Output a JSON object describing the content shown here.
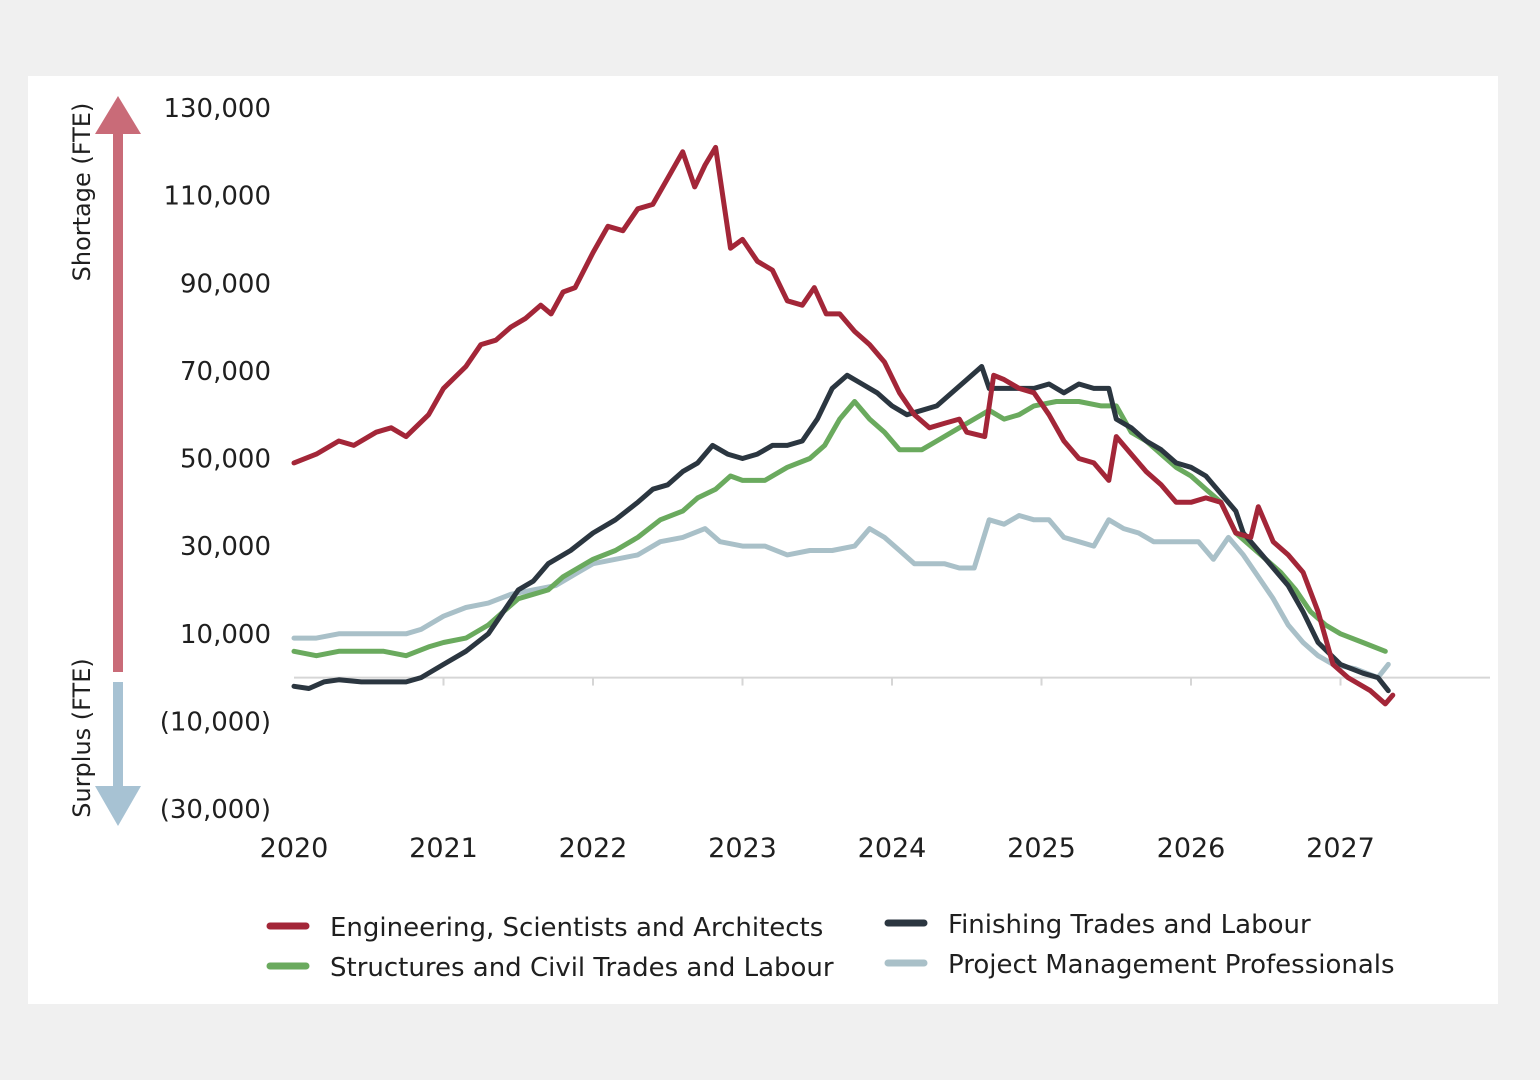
{
  "chart_data": {
    "type": "line",
    "title": "",
    "xlabel": "",
    "ylabel_top": "Shortage (FTE)",
    "ylabel_bottom": "Surplus (FTE)",
    "ylim": [
      -30000,
      130000
    ],
    "xlim": [
      2020,
      2028
    ],
    "y_ticks": [
      {
        "value": 130000,
        "label": "130,000"
      },
      {
        "value": 110000,
        "label": "110,000"
      },
      {
        "value": 90000,
        "label": "90,000"
      },
      {
        "value": 70000,
        "label": "70,000"
      },
      {
        "value": 50000,
        "label": "50,000"
      },
      {
        "value": 30000,
        "label": "30,000"
      },
      {
        "value": 10000,
        "label": "10,000"
      },
      {
        "value": -10000,
        "label": "(10,000)"
      },
      {
        "value": -30000,
        "label": "(30,000)"
      }
    ],
    "x_ticks": [
      {
        "value": 2020,
        "label": "2020"
      },
      {
        "value": 2021,
        "label": "2021"
      },
      {
        "value": 2022,
        "label": "2022"
      },
      {
        "value": 2023,
        "label": "2023"
      },
      {
        "value": 2024,
        "label": "2024"
      },
      {
        "value": 2025,
        "label": "2025"
      },
      {
        "value": 2026,
        "label": "2026"
      },
      {
        "value": 2027,
        "label": "2027"
      }
    ],
    "legend_position": "bottom",
    "series": [
      {
        "name": "Engineering, Scientists and Architects",
        "color": "#a32638",
        "points": [
          [
            2020,
            49000
          ],
          [
            2020.15,
            51000
          ],
          [
            2020.3,
            54000
          ],
          [
            2020.4,
            53000
          ],
          [
            2020.55,
            56000
          ],
          [
            2020.65,
            57000
          ],
          [
            2020.75,
            55000
          ],
          [
            2020.9,
            60000
          ],
          [
            2021.0,
            66000
          ],
          [
            2021.15,
            71000
          ],
          [
            2021.25,
            76000
          ],
          [
            2021.35,
            77000
          ],
          [
            2021.45,
            80000
          ],
          [
            2021.55,
            82000
          ],
          [
            2021.65,
            85000
          ],
          [
            2021.72,
            83000
          ],
          [
            2021.8,
            88000
          ],
          [
            2021.88,
            89000
          ],
          [
            2022.0,
            97000
          ],
          [
            2022.1,
            103000
          ],
          [
            2022.2,
            102000
          ],
          [
            2022.3,
            107000
          ],
          [
            2022.4,
            108000
          ],
          [
            2022.5,
            114000
          ],
          [
            2022.6,
            120000
          ],
          [
            2022.68,
            112000
          ],
          [
            2022.75,
            117000
          ],
          [
            2022.82,
            121000
          ],
          [
            2022.92,
            98000
          ],
          [
            2023.0,
            100000
          ],
          [
            2023.1,
            95000
          ],
          [
            2023.2,
            93000
          ],
          [
            2023.3,
            86000
          ],
          [
            2023.4,
            85000
          ],
          [
            2023.48,
            89000
          ],
          [
            2023.56,
            83000
          ],
          [
            2023.65,
            83000
          ],
          [
            2023.75,
            79000
          ],
          [
            2023.85,
            76000
          ],
          [
            2023.95,
            72000
          ],
          [
            2024.05,
            65000
          ],
          [
            2024.15,
            60000
          ],
          [
            2024.25,
            57000
          ],
          [
            2024.35,
            58000
          ],
          [
            2024.45,
            59000
          ],
          [
            2024.5,
            56000
          ],
          [
            2024.62,
            55000
          ],
          [
            2024.68,
            69000
          ],
          [
            2024.75,
            68000
          ],
          [
            2024.85,
            66000
          ],
          [
            2024.95,
            65000
          ],
          [
            2025.05,
            60000
          ],
          [
            2025.15,
            54000
          ],
          [
            2025.25,
            50000
          ],
          [
            2025.35,
            49000
          ],
          [
            2025.45,
            45000
          ],
          [
            2025.5,
            55000
          ],
          [
            2025.6,
            51000
          ],
          [
            2025.7,
            47000
          ],
          [
            2025.8,
            44000
          ],
          [
            2025.9,
            40000
          ],
          [
            2026.0,
            40000
          ],
          [
            2026.1,
            41000
          ],
          [
            2026.2,
            40000
          ],
          [
            2026.3,
            33000
          ],
          [
            2026.4,
            32000
          ],
          [
            2026.45,
            39000
          ],
          [
            2026.55,
            31000
          ],
          [
            2026.65,
            28000
          ],
          [
            2026.75,
            24000
          ],
          [
            2026.85,
            15000
          ],
          [
            2026.95,
            3000
          ],
          [
            2027.05,
            0
          ],
          [
            2027.2,
            -3000
          ],
          [
            2027.3,
            -6000
          ],
          [
            2027.35,
            -4000
          ]
        ]
      },
      {
        "name": "Structures and Civil Trades and Labour",
        "color": "#6aaa5e",
        "points": [
          [
            2020,
            6000
          ],
          [
            2020.15,
            5000
          ],
          [
            2020.3,
            6000
          ],
          [
            2020.45,
            6000
          ],
          [
            2020.6,
            6000
          ],
          [
            2020.75,
            5000
          ],
          [
            2020.9,
            7000
          ],
          [
            2021.0,
            8000
          ],
          [
            2021.15,
            9000
          ],
          [
            2021.3,
            12000
          ],
          [
            2021.4,
            15000
          ],
          [
            2021.5,
            18000
          ],
          [
            2021.6,
            19000
          ],
          [
            2021.7,
            20000
          ],
          [
            2021.8,
            23000
          ],
          [
            2021.9,
            25000
          ],
          [
            2022.0,
            27000
          ],
          [
            2022.15,
            29000
          ],
          [
            2022.3,
            32000
          ],
          [
            2022.45,
            36000
          ],
          [
            2022.6,
            38000
          ],
          [
            2022.7,
            41000
          ],
          [
            2022.82,
            43000
          ],
          [
            2022.92,
            46000
          ],
          [
            2023.0,
            45000
          ],
          [
            2023.15,
            45000
          ],
          [
            2023.3,
            48000
          ],
          [
            2023.45,
            50000
          ],
          [
            2023.55,
            53000
          ],
          [
            2023.65,
            59000
          ],
          [
            2023.75,
            63000
          ],
          [
            2023.85,
            59000
          ],
          [
            2023.95,
            56000
          ],
          [
            2024.05,
            52000
          ],
          [
            2024.2,
            52000
          ],
          [
            2024.3,
            54000
          ],
          [
            2024.4,
            56000
          ],
          [
            2024.5,
            58000
          ],
          [
            2024.65,
            61000
          ],
          [
            2024.75,
            59000
          ],
          [
            2024.85,
            60000
          ],
          [
            2024.95,
            62000
          ],
          [
            2025.1,
            63000
          ],
          [
            2025.25,
            63000
          ],
          [
            2025.4,
            62000
          ],
          [
            2025.5,
            62000
          ],
          [
            2025.6,
            56000
          ],
          [
            2025.7,
            54000
          ],
          [
            2025.8,
            51000
          ],
          [
            2025.9,
            48000
          ],
          [
            2026.0,
            46000
          ],
          [
            2026.1,
            43000
          ],
          [
            2026.2,
            40000
          ],
          [
            2026.3,
            33000
          ],
          [
            2026.4,
            30000
          ],
          [
            2026.5,
            27000
          ],
          [
            2026.6,
            24000
          ],
          [
            2026.7,
            20000
          ],
          [
            2026.8,
            15000
          ],
          [
            2026.9,
            12000
          ],
          [
            2027.0,
            10000
          ],
          [
            2027.15,
            8000
          ],
          [
            2027.3,
            6000
          ]
        ]
      },
      {
        "name": "Finishing Trades and Labour",
        "color": "#2b3640",
        "points": [
          [
            2020,
            -2000
          ],
          [
            2020.1,
            -2500
          ],
          [
            2020.2,
            -1000
          ],
          [
            2020.3,
            -500
          ],
          [
            2020.45,
            -1000
          ],
          [
            2020.6,
            -1000
          ],
          [
            2020.75,
            -1000
          ],
          [
            2020.85,
            0
          ],
          [
            2021.0,
            3000
          ],
          [
            2021.15,
            6000
          ],
          [
            2021.3,
            10000
          ],
          [
            2021.4,
            15000
          ],
          [
            2021.5,
            20000
          ],
          [
            2021.6,
            22000
          ],
          [
            2021.7,
            26000
          ],
          [
            2021.85,
            29000
          ],
          [
            2022.0,
            33000
          ],
          [
            2022.15,
            36000
          ],
          [
            2022.3,
            40000
          ],
          [
            2022.4,
            43000
          ],
          [
            2022.5,
            44000
          ],
          [
            2022.6,
            47000
          ],
          [
            2022.7,
            49000
          ],
          [
            2022.8,
            53000
          ],
          [
            2022.9,
            51000
          ],
          [
            2023.0,
            50000
          ],
          [
            2023.1,
            51000
          ],
          [
            2023.2,
            53000
          ],
          [
            2023.3,
            53000
          ],
          [
            2023.4,
            54000
          ],
          [
            2023.5,
            59000
          ],
          [
            2023.6,
            66000
          ],
          [
            2023.7,
            69000
          ],
          [
            2023.8,
            67000
          ],
          [
            2023.9,
            65000
          ],
          [
            2024.0,
            62000
          ],
          [
            2024.1,
            60000
          ],
          [
            2024.2,
            61000
          ],
          [
            2024.3,
            62000
          ],
          [
            2024.4,
            65000
          ],
          [
            2024.5,
            68000
          ],
          [
            2024.6,
            71000
          ],
          [
            2024.65,
            66000
          ],
          [
            2024.75,
            66000
          ],
          [
            2024.85,
            66000
          ],
          [
            2024.95,
            66000
          ],
          [
            2025.05,
            67000
          ],
          [
            2025.15,
            65000
          ],
          [
            2025.25,
            67000
          ],
          [
            2025.35,
            66000
          ],
          [
            2025.45,
            66000
          ],
          [
            2025.5,
            59000
          ],
          [
            2025.6,
            57000
          ],
          [
            2025.7,
            54000
          ],
          [
            2025.8,
            52000
          ],
          [
            2025.9,
            49000
          ],
          [
            2026.0,
            48000
          ],
          [
            2026.1,
            46000
          ],
          [
            2026.2,
            42000
          ],
          [
            2026.3,
            38000
          ],
          [
            2026.35,
            33000
          ],
          [
            2026.45,
            29000
          ],
          [
            2026.55,
            25000
          ],
          [
            2026.65,
            21000
          ],
          [
            2026.75,
            15000
          ],
          [
            2026.85,
            8000
          ],
          [
            2027.0,
            3000
          ],
          [
            2027.15,
            1000
          ],
          [
            2027.25,
            0
          ],
          [
            2027.32,
            -3000
          ]
        ]
      },
      {
        "name": "Project Management Professionals",
        "color": "#a9c0c8",
        "points": [
          [
            2020,
            9000
          ],
          [
            2020.15,
            9000
          ],
          [
            2020.3,
            10000
          ],
          [
            2020.45,
            10000
          ],
          [
            2020.6,
            10000
          ],
          [
            2020.75,
            10000
          ],
          [
            2020.85,
            11000
          ],
          [
            2021.0,
            14000
          ],
          [
            2021.15,
            16000
          ],
          [
            2021.3,
            17000
          ],
          [
            2021.45,
            19000
          ],
          [
            2021.6,
            20000
          ],
          [
            2021.75,
            21000
          ],
          [
            2021.9,
            24000
          ],
          [
            2022.0,
            26000
          ],
          [
            2022.15,
            27000
          ],
          [
            2022.3,
            28000
          ],
          [
            2022.45,
            31000
          ],
          [
            2022.6,
            32000
          ],
          [
            2022.75,
            34000
          ],
          [
            2022.85,
            31000
          ],
          [
            2023.0,
            30000
          ],
          [
            2023.15,
            30000
          ],
          [
            2023.3,
            28000
          ],
          [
            2023.45,
            29000
          ],
          [
            2023.6,
            29000
          ],
          [
            2023.75,
            30000
          ],
          [
            2023.85,
            34000
          ],
          [
            2023.95,
            32000
          ],
          [
            2024.05,
            29000
          ],
          [
            2024.15,
            26000
          ],
          [
            2024.25,
            26000
          ],
          [
            2024.35,
            26000
          ],
          [
            2024.45,
            25000
          ],
          [
            2024.55,
            25000
          ],
          [
            2024.65,
            36000
          ],
          [
            2024.75,
            35000
          ],
          [
            2024.85,
            37000
          ],
          [
            2024.95,
            36000
          ],
          [
            2025.05,
            36000
          ],
          [
            2025.15,
            32000
          ],
          [
            2025.25,
            31000
          ],
          [
            2025.35,
            30000
          ],
          [
            2025.45,
            36000
          ],
          [
            2025.55,
            34000
          ],
          [
            2025.65,
            33000
          ],
          [
            2025.75,
            31000
          ],
          [
            2025.85,
            31000
          ],
          [
            2025.95,
            31000
          ],
          [
            2026.05,
            31000
          ],
          [
            2026.15,
            27000
          ],
          [
            2026.25,
            32000
          ],
          [
            2026.35,
            28000
          ],
          [
            2026.45,
            23000
          ],
          [
            2026.55,
            18000
          ],
          [
            2026.65,
            12000
          ],
          [
            2026.75,
            8000
          ],
          [
            2026.85,
            5000
          ],
          [
            2026.95,
            3000
          ],
          [
            2027.1,
            2000
          ],
          [
            2027.25,
            0
          ],
          [
            2027.32,
            3000
          ]
        ]
      }
    ]
  }
}
